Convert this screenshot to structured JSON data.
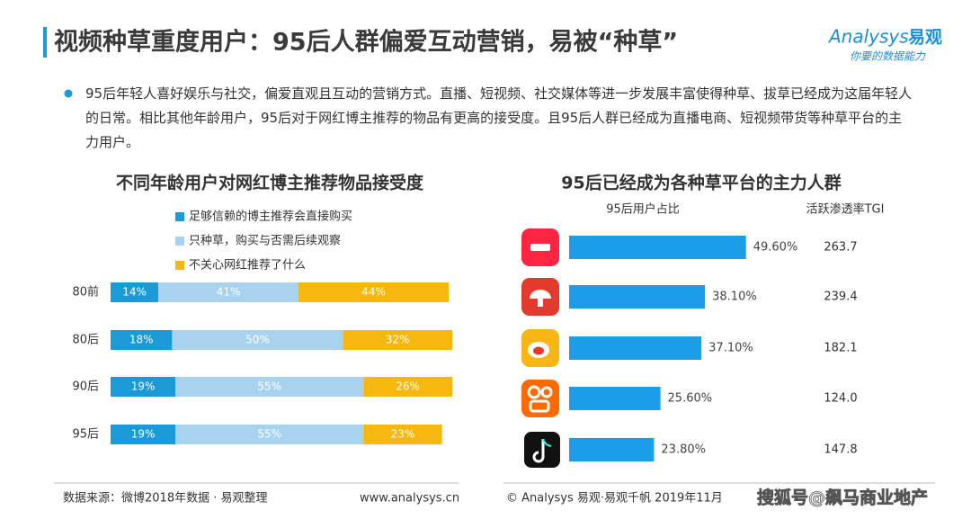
{
  "header": {
    "title": "视频种草重度用户：95后人群偏爱互动营销，易被“种草”",
    "logo": "Analysys",
    "logo_cn": "易观",
    "tagline": "你要的数据能力"
  },
  "bullet": "95后年轻人喜好娱乐与社交，偏爱直观且互动的营销方式。直播、短视频、社交媒体等进一步发展丰富使得种草、拔草已经成为这届年轻人的日常。相比其他年龄用户，95后对于网红博主推荐的物品有更高的接受度。且95后人群已经成为直播电商、短视频带货等种草平台的主力用户。",
  "chart_data": [
    {
      "type": "bar",
      "orientation": "horizontal",
      "stacked": true,
      "title": "不同年龄用户对网红博主推荐物品接受度",
      "categories": [
        "80前",
        "80后",
        "90后",
        "95后"
      ],
      "xlim": [
        0,
        100
      ],
      "series": [
        {
          "name": "足够信赖的博主推荐会直接购买",
          "color": "#1a9ad6",
          "values": [
            14,
            18,
            19,
            19
          ],
          "value_labels": [
            "14%",
            "18%",
            "19%",
            "19%"
          ]
        },
        {
          "name": "只种草，购买与否需后续观察",
          "color": "#a9d2ef",
          "values": [
            41,
            50,
            55,
            55
          ],
          "value_labels": [
            "41%",
            "50%",
            "55%",
            "55%"
          ]
        },
        {
          "name": "不关心网红推荐了什么",
          "color": "#f6b70f",
          "values": [
            44,
            32,
            26,
            23
          ],
          "value_labels": [
            "44%",
            "32%",
            "26%",
            "23%"
          ]
        }
      ]
    },
    {
      "type": "bar",
      "orientation": "horizontal",
      "title": "95后已经成为各种草平台的主力人群",
      "xlim": [
        0,
        60
      ],
      "series": [
        {
          "name": "95后用户占比",
          "color": "#1b9de9",
          "values": [
            49.6,
            38.1,
            37.1,
            25.6,
            23.8
          ],
          "value_labels": [
            "49.60%",
            "38.10%",
            "37.10%",
            "25.60%",
            "23.80%"
          ]
        },
        {
          "name": "活跃渗透率TGI",
          "display": "text",
          "values": [
            263.7,
            239.4,
            182.1,
            124.0,
            147.8
          ],
          "value_labels": [
            "263.7",
            "239.4",
            "182.1",
            "124.0",
            "147.8"
          ]
        }
      ]
    }
  ],
  "footer": {
    "source": "数据来源：微博2018年数据 · 易观整理",
    "website": "www.analysys.cn",
    "copyright": "© Analysys 易观·易观千帆 2019年11月",
    "watermark": "搜狐号@飙马商业地产"
  }
}
